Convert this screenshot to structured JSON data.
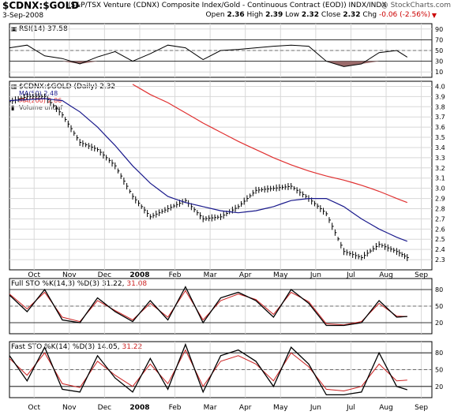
{
  "header": {
    "symbol": "$CDNX:$GOLD",
    "description": "(S&P/TSX Venture (CDNX) Composite Index/Gold - Continuous Contract (EOD)) INDX/INDX",
    "copyright": "@ StockCharts.com",
    "date": "3-Sep-2008",
    "open_label": "Open",
    "open": "2.36",
    "high_label": "High",
    "high": "2.39",
    "low_label": "Low",
    "low": "2.32",
    "close_label": "Close",
    "close": "2.32",
    "chg_label": "Chg",
    "chg": "-0.06 (-2.56%)",
    "chg_arrow": "▼"
  },
  "colors": {
    "price": "#000000",
    "ma50": "#1a1a8c",
    "ma200": "#e03030",
    "rsi_fill": "#9a6a6a",
    "signal": "#cc2222",
    "grid": "#d8d8d8"
  },
  "x_axis": {
    "ticks": [
      "Oct",
      "Nov",
      "Dec",
      "2008",
      "Feb",
      "Mar",
      "Apr",
      "May",
      "Jun",
      "Jul",
      "Aug",
      "Sep"
    ],
    "bold": [
      "2008"
    ],
    "range_months": [
      0,
      12
    ]
  },
  "panels": {
    "rsi": {
      "label": "RSI(14) 37.58",
      "icon": "chart-icon",
      "ylim": [
        0,
        100
      ],
      "ticks": [
        "90",
        "70",
        "50",
        "30",
        "10"
      ],
      "tick_values": [
        90,
        70,
        50,
        30,
        10
      ],
      "ref_lines": [
        70,
        30
      ],
      "mid_line": 50
    },
    "price": {
      "label": "$CDNX:$GOLD (Daily) 2.32",
      "icon": "bar-chart-icon",
      "legend": [
        {
          "name": "MA(50) 2.48",
          "color": "#1a1a8c"
        },
        {
          "name": "MA(200) 2.86",
          "color": "#e03030"
        },
        {
          "name": "Volume undef",
          "color": "#444444",
          "icon": "volume-bar-icon"
        }
      ],
      "ylim": [
        2.2,
        4.05
      ],
      "ticks": [
        "4.0",
        "3.9",
        "3.8",
        "3.7",
        "3.6",
        "3.5",
        "3.4",
        "3.3",
        "3.2",
        "3.1",
        "3.0",
        "2.9",
        "2.8",
        "2.7",
        "2.6",
        "2.5",
        "2.4",
        "2.3"
      ],
      "tick_values": [
        4.0,
        3.9,
        3.8,
        3.7,
        3.6,
        3.5,
        3.4,
        3.3,
        3.2,
        3.1,
        3.0,
        2.9,
        2.8,
        2.7,
        2.6,
        2.5,
        2.4,
        2.3
      ]
    },
    "full_sto": {
      "label_main": "Full STO %K(14,3) %D(3) 31.22,",
      "label_signal": "31.08",
      "ylim": [
        0,
        100
      ],
      "ticks": [
        "80",
        "50",
        "20"
      ],
      "tick_values": [
        80,
        50,
        20
      ]
    },
    "fast_sto": {
      "label_main": "Fast STO %K(14) %D(3) 14.05,",
      "label_signal": "31.22",
      "ylim": [
        0,
        100
      ],
      "ticks": [
        "80",
        "50",
        "20"
      ],
      "tick_values": [
        80,
        50,
        20
      ]
    }
  },
  "chart_data": [
    {
      "type": "line",
      "title": "RSI(14) 37.58",
      "ylim": [
        0,
        100
      ],
      "x": [
        0.0,
        0.5,
        1.0,
        1.5,
        2.0,
        2.5,
        3.0,
        3.5,
        4.0,
        4.5,
        5.0,
        5.5,
        6.0,
        6.5,
        7.0,
        7.5,
        8.0,
        8.5,
        9.0,
        9.5,
        10.0,
        10.5,
        11.0,
        11.3
      ],
      "series": [
        {
          "name": "RSI(14) 37.58",
          "values": [
            55,
            60,
            40,
            35,
            25,
            38,
            48,
            30,
            44,
            60,
            55,
            33,
            50,
            52,
            55,
            58,
            60,
            58,
            30,
            20,
            25,
            46,
            50,
            37.58
          ]
        }
      ]
    },
    {
      "type": "line",
      "title": "$CDNX:$GOLD (Daily) 2.32",
      "ylim": [
        2.2,
        4.05
      ],
      "x": [
        0.0,
        0.5,
        1.0,
        1.5,
        2.0,
        2.5,
        3.0,
        3.5,
        4.0,
        4.5,
        5.0,
        5.5,
        6.0,
        6.5,
        7.0,
        7.5,
        8.0,
        8.5,
        9.0,
        9.5,
        10.0,
        10.5,
        11.0,
        11.3
      ],
      "series": [
        {
          "name": "$CDNX:$GOLD",
          "values": [
            3.85,
            3.9,
            3.9,
            3.72,
            3.45,
            3.38,
            3.22,
            2.92,
            2.72,
            2.8,
            2.88,
            2.7,
            2.72,
            2.82,
            2.98,
            3.0,
            3.02,
            2.9,
            2.75,
            2.38,
            2.32,
            2.45,
            2.38,
            2.32
          ]
        },
        {
          "name": "MA(50) 2.48",
          "values": [
            3.86,
            3.87,
            3.88,
            3.86,
            3.75,
            3.6,
            3.42,
            3.22,
            3.05,
            2.92,
            2.86,
            2.82,
            2.78,
            2.76,
            2.78,
            2.82,
            2.88,
            2.9,
            2.9,
            2.82,
            2.7,
            2.6,
            2.52,
            2.48
          ]
        },
        {
          "name": "MA(200) 2.86",
          "values": [
            null,
            null,
            null,
            null,
            null,
            null,
            null,
            4.02,
            3.92,
            3.84,
            3.74,
            3.64,
            3.55,
            3.46,
            3.38,
            3.3,
            3.23,
            3.17,
            3.12,
            3.08,
            3.03,
            2.97,
            2.9,
            2.86
          ]
        }
      ]
    },
    {
      "type": "line",
      "title": "Full STO %K(14,3) %D(3) 31.22, 31.08",
      "ylim": [
        0,
        100
      ],
      "x": [
        0.0,
        0.5,
        1.0,
        1.5,
        2.0,
        2.5,
        3.0,
        3.5,
        4.0,
        4.5,
        5.0,
        5.5,
        6.0,
        6.5,
        7.0,
        7.5,
        8.0,
        8.5,
        9.0,
        9.5,
        10.0,
        10.5,
        11.0,
        11.3
      ],
      "series": [
        {
          "name": "%K",
          "values": [
            70,
            40,
            80,
            25,
            20,
            65,
            40,
            22,
            60,
            25,
            85,
            20,
            65,
            75,
            60,
            30,
            80,
            55,
            15,
            15,
            20,
            60,
            30,
            31.22
          ]
        },
        {
          "name": "%D",
          "values": [
            72,
            45,
            75,
            30,
            22,
            60,
            42,
            25,
            55,
            30,
            78,
            25,
            60,
            72,
            62,
            35,
            75,
            58,
            18,
            16,
            22,
            55,
            32,
            31.08
          ]
        }
      ]
    },
    {
      "type": "line",
      "title": "Fast STO %K(14) %D(3) 14.05, 31.22",
      "ylim": [
        0,
        100
      ],
      "x": [
        0.0,
        0.5,
        1.0,
        1.5,
        2.0,
        2.5,
        3.0,
        3.5,
        4.0,
        4.5,
        5.0,
        5.5,
        6.0,
        6.5,
        7.0,
        7.5,
        8.0,
        8.5,
        9.0,
        9.5,
        10.0,
        10.5,
        11.0,
        11.3
      ],
      "series": [
        {
          "name": "%K",
          "values": [
            75,
            30,
            90,
            15,
            10,
            75,
            35,
            10,
            70,
            15,
            95,
            10,
            75,
            85,
            65,
            20,
            90,
            60,
            5,
            5,
            10,
            80,
            20,
            14.05
          ]
        },
        {
          "name": "%D",
          "values": [
            70,
            40,
            80,
            25,
            18,
            65,
            40,
            20,
            60,
            25,
            85,
            20,
            65,
            75,
            60,
            30,
            80,
            55,
            15,
            12,
            20,
            60,
            30,
            31.22
          ]
        }
      ]
    }
  ]
}
